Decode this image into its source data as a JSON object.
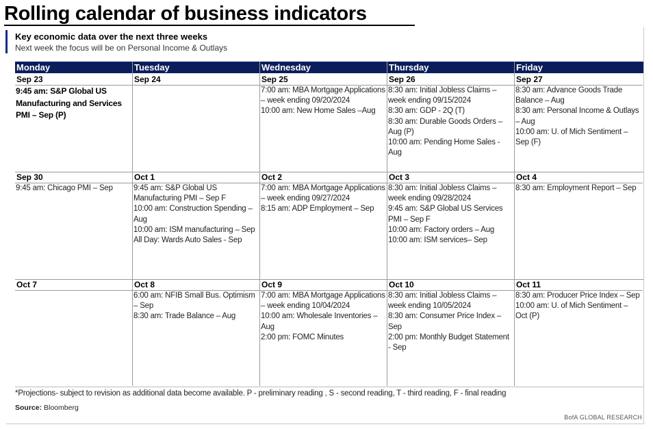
{
  "title": "Rolling calendar of business indicators",
  "subtitle": "Key economic data over the next three weeks",
  "subtext": "Next week the focus will be on Personal Income & Outlays",
  "days": [
    "Monday",
    "Tuesday",
    "Wednesday",
    "Thursday",
    "Friday"
  ],
  "weeks": [
    {
      "cells": [
        {
          "date": "Sep 23",
          "bold": true,
          "events": [
            "9:45 am: S&P Global US Manufacturing and Services PMI – Sep (P)"
          ]
        },
        {
          "date": "Sep 24",
          "events": []
        },
        {
          "date": "Sep 25",
          "events": [
            "7:00 am: MBA Mortgage Applications – week ending 09/20/2024",
            "10:00 am: New Home Sales –Aug"
          ]
        },
        {
          "date": "Sep 26",
          "events": [
            "8:30 am: Initial Jobless Claims – week ending 09/15/2024",
            "8:30 am: GDP - 2Q (T)",
            "8:30 am: Durable Goods Orders – Aug (P)",
            "10:00 am: Pending Home Sales - Aug"
          ]
        },
        {
          "date": "Sep 27",
          "events": [
            "8:30 am: Advance Goods Trade Balance – Aug",
            "8:30 am: Personal Income & Outlays – Aug",
            "10:00 am: U. of Mich Sentiment – Sep (F)"
          ]
        }
      ]
    },
    {
      "cells": [
        {
          "date": "Sep 30",
          "events": [
            "9:45 am: Chicago PMI – Sep"
          ]
        },
        {
          "date": "Oct 1",
          "events": [
            "9:45 am: S&P Global US Manufacturing PMI – Sep F",
            "10:00 am: Construction Spending – Aug",
            "10:00 am: ISM manufacturing – Sep",
            "All Day: Wards Auto Sales - Sep"
          ]
        },
        {
          "date": "Oct 2",
          "events": [
            "7:00 am: MBA Mortgage Applications – week ending 09/27/2024",
            "8:15 am: ADP Employment – Sep"
          ]
        },
        {
          "date": "Oct 3",
          "events": [
            "8:30 am: Initial Jobless Claims – week ending 09/28/2024",
            "9:45 am: S&P Global US Services PMI – Sep F",
            "10:00 am: Factory orders – Aug",
            "10:00 am: ISM services– Sep"
          ]
        },
        {
          "date": "Oct 4",
          "events": [
            "8:30 am: Employment Report – Sep"
          ]
        }
      ]
    },
    {
      "cells": [
        {
          "date": "Oct 7",
          "events": []
        },
        {
          "date": "Oct 8",
          "events": [
            "6:00 am: NFIB Small Bus. Optimism – Sep",
            "8:30 am: Trade Balance – Aug"
          ]
        },
        {
          "date": "Oct 9",
          "events": [
            "7:00 am: MBA Mortgage Applications – week ending 10/04/2024",
            "10:00 am: Wholesale Inventories – Aug",
            "2:00 pm: FOMC Minutes"
          ]
        },
        {
          "date": "Oct 10",
          "events": [
            "8:30 am: Initial Jobless Claims – week ending 10/05/2024",
            "8:30 am: Consumer Price Index – Sep",
            "2:00 pm: Monthly Budget Statement - Sep"
          ]
        },
        {
          "date": "Oct 11",
          "events": [
            "8:30 am: Producer Price Index – Sep",
            "10:00 am: U. of Mich Sentiment – Oct (P)"
          ]
        }
      ]
    }
  ],
  "footnote": "*Projections- subject to revision as additional data become available. P - preliminary reading , S -  second reading, T - third reading, F - final reading",
  "source_label": "Source:",
  "source_value": " Bloomberg",
  "brand": "BofA GLOBAL RESEARCH"
}
